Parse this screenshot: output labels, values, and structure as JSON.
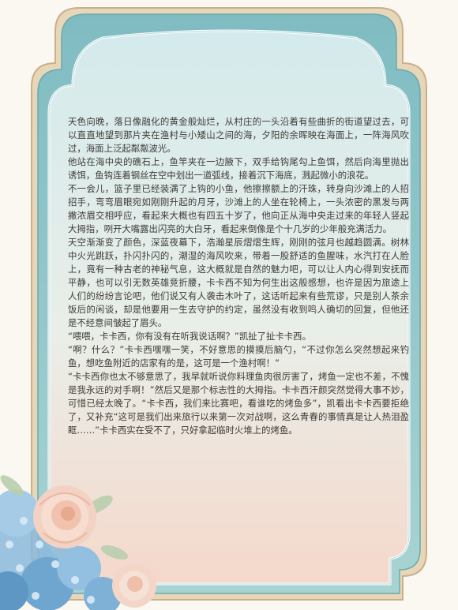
{
  "colors": {
    "frame_outer": "#d9c7a6",
    "frame_teal": "#8cc3c7",
    "panel_top": "#d7ecee",
    "panel_bottom": "#f6dcd0",
    "text": "#3e3a36",
    "rose": "#f2c8b4",
    "hydrangea": "#6fa6cf"
  },
  "decor": {
    "left_flowers": "rose-and-hydrangea-illustration"
  },
  "paragraphs": [
    "天色向晚，落日像融化的黄金般灿烂，从村庄的一头沿着有些曲折的街道望过去，可以直直地望到那片夹在渔村与小矮山之间的海，夕阳的余晖映在海面上，一阵海风吹过，海面上泛起粼粼波光。",
    "他站在海中央的礁石上，鱼竿夹在一边腋下，双手给钩尾勾上鱼饵，然后向海里抛出诱饵，鱼钩连着钢丝在空中划出一道弧线，接着沉下海底，溅起微小的浪花。",
    "不一会儿，篮子里已经装满了上钩的小鱼，他擦擦额上的汗珠，转身向沙滩上的人招招手，弯弯眉眼宛如刚刚升起的月牙，沙滩上的人坐在轮椅上，一头浓密的黑发与两撇浓眉交相呼应，看起来大概也有四五十岁了，他向正从海中央走过来的年轻人竖起大拇指，咧开大嘴露出闪亮的大白牙，看起来倒像是个十几岁的少年般充满活力。",
    "天空渐渐变了颜色，深蓝夜幕下，浩瀚星辰熠熠生辉，刚刚的弦月也越趋圆满。树林中火光跳跃，扑闪扑闪的，潮湿的海风吹来，带着一股舒适的鱼腥味，水汽打在人脸上，竟有一种古老的神秘气息，这大概就是自然的魅力吧，可以让人内心得到安抚而平静，也可以引无数英雄竞折腰，卡卡西不知为何生出这般感想，也许是因为旅途上人们的纷纷言论吧，他们说又有人袭击木叶了，这话听起来有些荒谬，只是别人茶余饭后的闲谈，却是他要用一生去守护的约定，虽然没有收到鸣人确切的回复，但他还是不经意间皱起了眉头。",
    "“喂喂，卡卡西，你有没有在听我说话啊？”凯扯了扯卡卡西。",
    "“啊？什么？”卡卡西嘿嘿一笑，不好意思的摸摸后脑勺，“不过你怎么突然想起来钓鱼，想吃鱼附近的店家有的是，这可是一个渔村啊！”",
    "“卡卡西你也太不够意思了，我早就听说你料理鱼肉很厉害了，烤鱼一定也不差，不愧是我永远的对手啊！”然后又是那个标志性的大拇指。卡卡西汗颜突然觉得大事不妙，可惜已经太晚了。“卡卡西，我们来比赛吧，看谁吃的烤鱼多”，凯看出卡卡西要拒绝了，又补充“这可是我们出来旅行以来第一次对战啊，这么青春的事情真是让人热泪盈眶……”卡卡西实在受不了，只好拿起临时火堆上的烤鱼。"
  ]
}
